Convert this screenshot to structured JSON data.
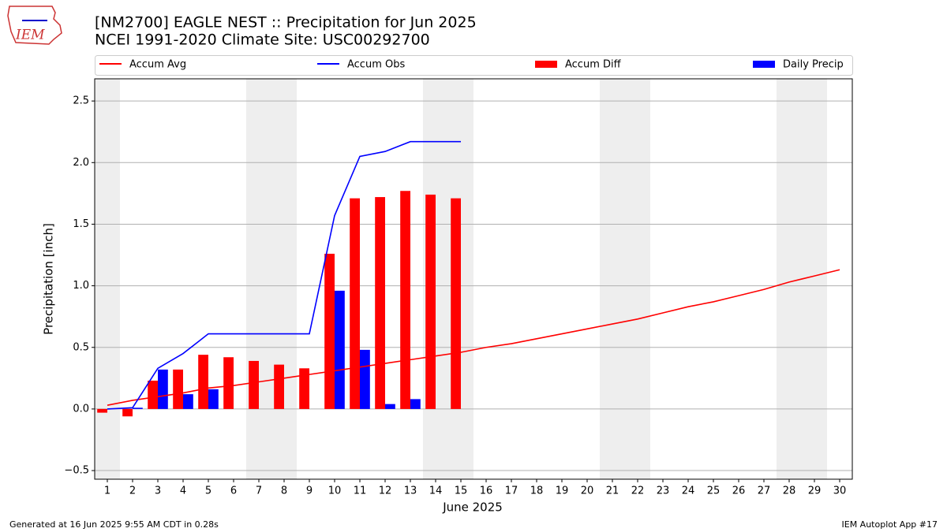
{
  "logo_text": "IEM",
  "footer_left": "Generated at 16 Jun 2025 9:55 AM CDT in 0.28s",
  "footer_right": "IEM Autoplot App #17",
  "chart_data": {
    "type": "bar",
    "title": "[NM2700] EAGLE NEST :: Precipitation for Jun 2025",
    "subtitle": "NCEI 1991-2020 Climate Site: USC00292700",
    "ylabel": "Precipitation [inch]",
    "xlabel": "June 2025",
    "x": [
      1,
      2,
      3,
      4,
      5,
      6,
      7,
      8,
      9,
      10,
      11,
      12,
      13,
      14,
      15,
      16,
      17,
      18,
      19,
      20,
      21,
      22,
      23,
      24,
      25,
      26,
      27,
      28,
      29,
      30
    ],
    "xlim": [
      0.5,
      30.5
    ],
    "xticks": [
      1,
      2,
      3,
      4,
      5,
      6,
      7,
      8,
      9,
      10,
      11,
      12,
      13,
      14,
      15,
      16,
      17,
      18,
      19,
      20,
      21,
      22,
      23,
      24,
      25,
      26,
      27,
      28,
      29,
      30
    ],
    "ylim": [
      -0.57,
      2.68
    ],
    "yticks": [
      {
        "value": -0.5,
        "label": "−0.5"
      },
      {
        "value": 0,
        "label": "0.0"
      },
      0.5,
      {
        "value": 1,
        "label": "1.0"
      },
      1.5,
      {
        "value": 2,
        "label": "2.0"
      },
      2.5
    ],
    "grid": true,
    "shaded_days": [
      1,
      7,
      8,
      14,
      15,
      21,
      22,
      28,
      29
    ],
    "series": [
      {
        "name": "Accum Avg",
        "kind": "line",
        "color": "#ff0000",
        "values": [
          0.03,
          0.07,
          0.1,
          0.13,
          0.17,
          0.19,
          0.22,
          0.25,
          0.28,
          0.31,
          0.34,
          0.37,
          0.4,
          0.43,
          0.46,
          0.5,
          0.53,
          0.57,
          0.61,
          0.65,
          0.69,
          0.73,
          0.78,
          0.83,
          0.87,
          0.92,
          0.97,
          1.03,
          1.08,
          1.13
        ]
      },
      {
        "name": "Accum Obs",
        "kind": "line",
        "color": "#0000ff",
        "values": [
          0.0,
          0.01,
          0.33,
          0.45,
          0.61,
          0.61,
          0.61,
          0.61,
          0.61,
          1.57,
          2.05,
          2.09,
          2.17,
          2.17,
          2.17,
          null,
          null,
          null,
          null,
          null,
          null,
          null,
          null,
          null,
          null,
          null,
          null,
          null,
          null,
          null
        ]
      },
      {
        "name": "Accum Diff",
        "kind": "bar",
        "offset": "left",
        "color": "#ff0000",
        "values": [
          -0.03,
          -0.06,
          0.23,
          0.32,
          0.44,
          0.42,
          0.39,
          0.36,
          0.33,
          1.26,
          1.71,
          1.72,
          1.77,
          1.74,
          1.71,
          null,
          null,
          null,
          null,
          null,
          null,
          null,
          null,
          null,
          null,
          null,
          null,
          null,
          null,
          null
        ]
      },
      {
        "name": "Daily Precip",
        "kind": "bar",
        "offset": "right",
        "color": "#0000ff",
        "values": [
          0,
          0.01,
          0.32,
          0.12,
          0.16,
          0,
          0,
          0,
          0,
          0.96,
          0.48,
          0.04,
          0.08,
          0,
          0,
          null,
          null,
          null,
          null,
          null,
          null,
          null,
          null,
          null,
          null,
          null,
          null,
          null,
          null,
          null
        ]
      }
    ]
  }
}
